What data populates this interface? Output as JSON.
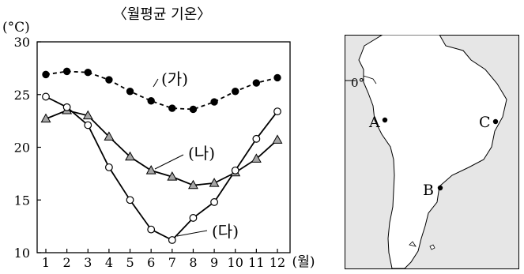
{
  "chart_data": {
    "type": "line",
    "title": "〈월평균 기온〉",
    "ylabel": "(°C)",
    "xlabel": "(월)",
    "categories": [
      "1",
      "2",
      "3",
      "4",
      "5",
      "6",
      "7",
      "8",
      "9",
      "10",
      "11",
      "12"
    ],
    "y_ticks": [
      "10",
      "15",
      "20",
      "25",
      "30"
    ],
    "ylim": [
      10,
      30
    ],
    "grid": false,
    "series": [
      {
        "name": "(가)",
        "marker": "filled-circle",
        "line_style": "dashed",
        "values": [
          26.9,
          27.2,
          27.1,
          26.4,
          25.3,
          24.4,
          23.7,
          23.6,
          24.3,
          25.3,
          26.1,
          26.6
        ]
      },
      {
        "name": "(나)",
        "marker": "triangle",
        "line_style": "solid",
        "values": [
          22.7,
          23.5,
          23.0,
          21.0,
          19.1,
          17.8,
          17.2,
          16.4,
          16.6,
          17.6,
          18.9,
          20.7
        ]
      },
      {
        "name": "(다)",
        "marker": "open-circle",
        "line_style": "solid",
        "values": [
          24.8,
          23.8,
          22.1,
          18.1,
          15.0,
          12.2,
          11.2,
          13.3,
          14.8,
          17.8,
          20.8,
          23.4
        ]
      }
    ]
  },
  "map": {
    "equator_label": "0°",
    "points": [
      {
        "label": "A"
      },
      {
        "label": "B"
      },
      {
        "label": "C"
      }
    ]
  }
}
